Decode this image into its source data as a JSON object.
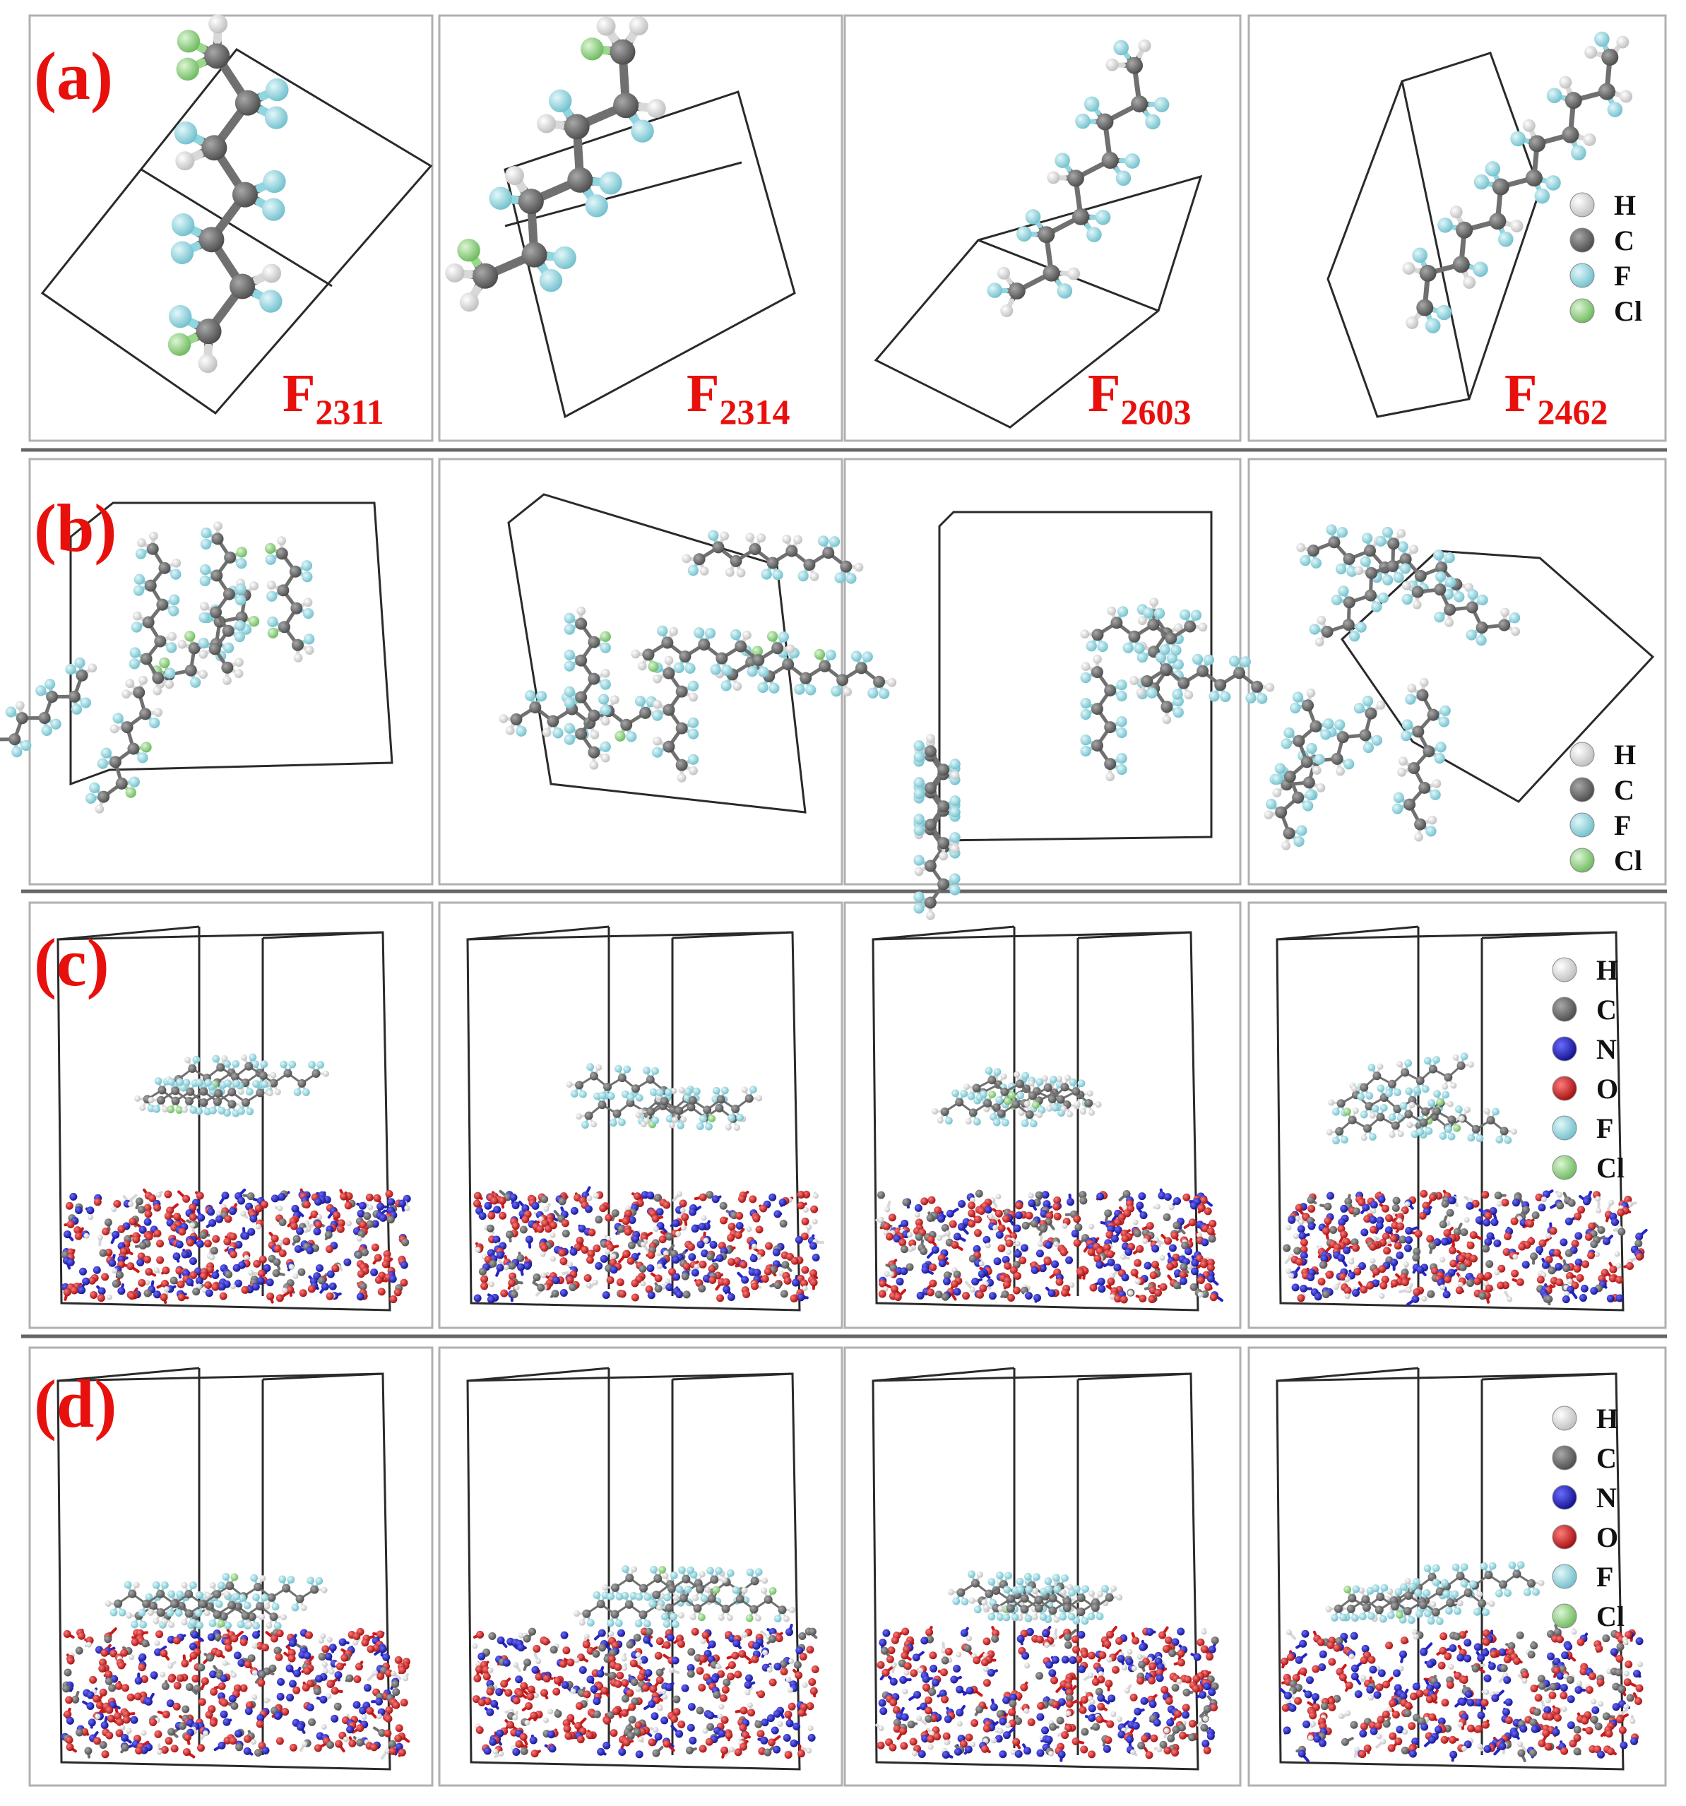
{
  "rows": [
    {
      "label": "(a)",
      "view": "single molecule unit cell"
    },
    {
      "label": "(b)",
      "view": "amorphous polymer cell"
    },
    {
      "label": "(c)",
      "view": "polymer above crystal surface"
    },
    {
      "label": "(d)",
      "view": "polymer adsorbed on crystal surface"
    }
  ],
  "formulas": [
    {
      "main": "F",
      "sub": "2311"
    },
    {
      "main": "F",
      "sub": "2314"
    },
    {
      "main": "F",
      "sub": "2603"
    },
    {
      "main": "F",
      "sub": "2462"
    }
  ],
  "legend_short": [
    {
      "symbol": "H",
      "color": "#f2f2f2"
    },
    {
      "symbol": "C",
      "color": "#6a6a6a"
    },
    {
      "symbol": "F",
      "color": "#8fd6e0"
    },
    {
      "symbol": "Cl",
      "color": "#98d98a"
    }
  ],
  "legend_full": [
    {
      "symbol": "H",
      "color": "#f2f2f2"
    },
    {
      "symbol": "C",
      "color": "#6a6a6a"
    },
    {
      "symbol": "N",
      "color": "#2424c8"
    },
    {
      "symbol": "O",
      "color": "#d01818"
    },
    {
      "symbol": "F",
      "color": "#8fd6e0"
    },
    {
      "symbol": "Cl",
      "color": "#98d98a"
    }
  ],
  "colors": {
    "label_red": "#e8100c",
    "carbon": "#6a6a6a",
    "hydrogen": "#f2f2f2",
    "fluorine": "#8fd6e0",
    "chlorine": "#98d98a",
    "nitrogen": "#2424c8",
    "oxygen": "#d01818"
  }
}
